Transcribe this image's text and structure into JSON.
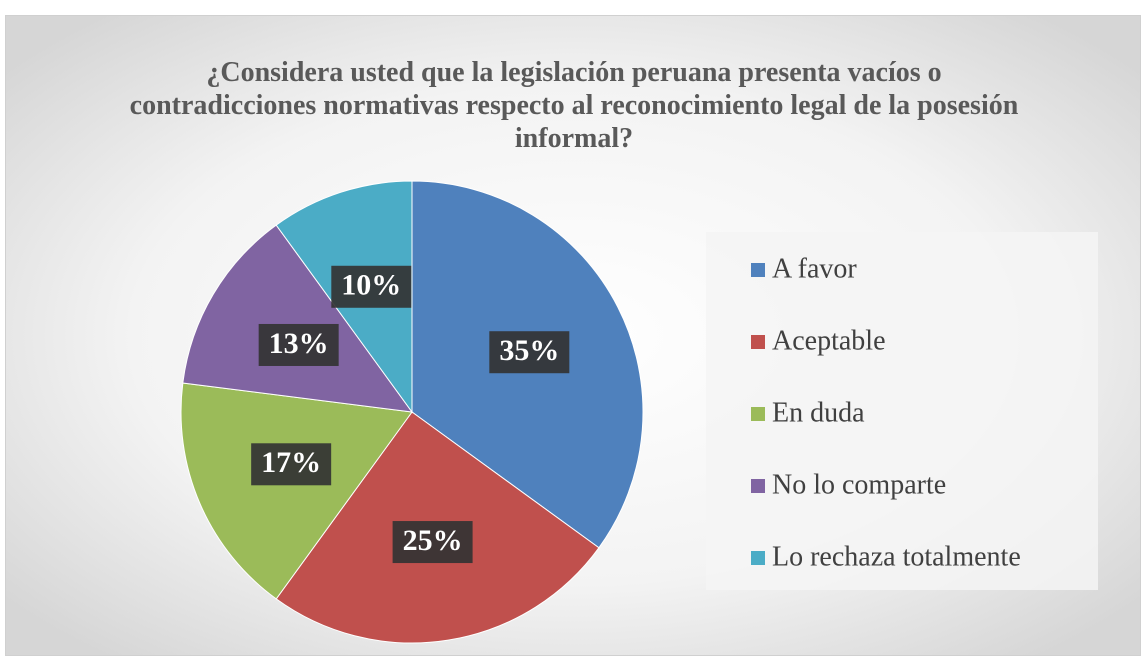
{
  "chart_data": {
    "type": "pie",
    "title": "¿Considera usted que la legislación peruana presenta vacíos o contradicciones normativas respecto al reconocimiento legal de la posesión informal?",
    "categories": [
      "A favor",
      "Aceptable",
      "En duda",
      "No lo comparte",
      "Lo rechaza totalmente"
    ],
    "values": [
      35,
      25,
      17,
      13,
      10
    ],
    "value_labels": [
      "35%",
      "25%",
      "17%",
      "13%",
      "10%"
    ],
    "colors": [
      "#4f81bd",
      "#c0504d",
      "#9bbb59",
      "#8064a2",
      "#4bacc6"
    ],
    "legend": "right"
  }
}
